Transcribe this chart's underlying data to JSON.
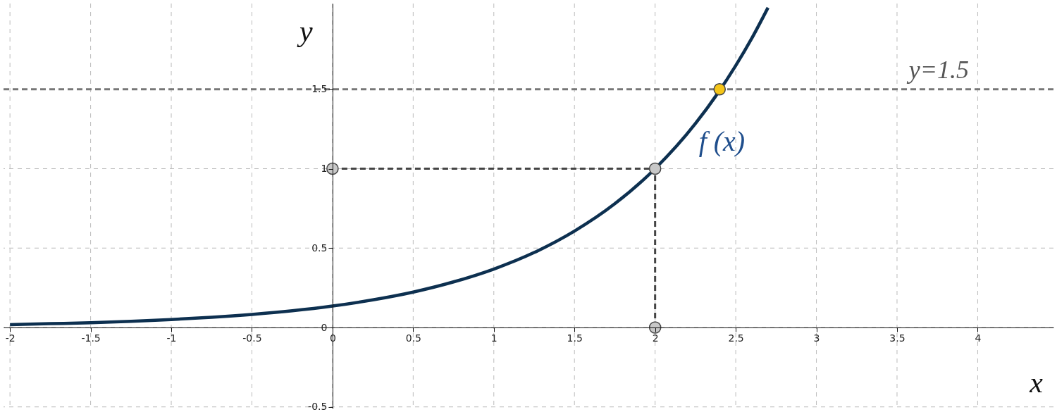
{
  "chart_data": {
    "type": "line",
    "xlabel": "x",
    "ylabel": "y",
    "xlim": [
      -2.04,
      4.47
    ],
    "ylim": [
      -0.51,
      2.04
    ],
    "xticks": [
      -2,
      -1.5,
      -1,
      -0.5,
      0,
      0.5,
      1,
      1.5,
      2,
      2.5,
      3,
      3.5,
      4
    ],
    "yticks": [
      -0.5,
      0,
      0.5,
      1,
      1.5
    ],
    "grid": true,
    "series": [
      {
        "name": "f (x)",
        "color": "#0d3050",
        "x": [
          -2,
          -1.75,
          -1.5,
          -1.25,
          -1,
          -0.75,
          -0.5,
          -0.25,
          0,
          0.25,
          0.5,
          0.75,
          1,
          1.25,
          1.5,
          1.75,
          2,
          2.25,
          2.5,
          2.6,
          2.7
        ],
        "values": [
          0.018,
          0.024,
          0.03,
          0.039,
          0.05,
          0.064,
          0.082,
          0.105,
          0.135,
          0.174,
          0.223,
          0.287,
          0.368,
          0.472,
          0.607,
          0.779,
          1,
          1.284,
          1.649,
          1.822,
          2.014
        ]
      },
      {
        "line_style": "dashed",
        "color": "#444444",
        "x": [
          0,
          2
        ],
        "values": [
          1,
          1
        ]
      },
      {
        "line_style": "dashed",
        "color": "#444444",
        "x": [
          2,
          2
        ],
        "values": [
          0,
          1
        ]
      },
      {
        "type": "scatter",
        "color": "#c8c8c8",
        "x": [
          0,
          2,
          2
        ],
        "values": [
          1,
          1,
          0
        ]
      },
      {
        "type": "scatter",
        "color": "#f5c518",
        "x": [
          2.4
        ],
        "values": [
          1.5
        ]
      }
    ],
    "ref_lines": [
      {
        "axis": "y",
        "value": 1.5,
        "label": "y=1.5",
        "line_style": "dashed",
        "color": "#777777"
      }
    ]
  }
}
